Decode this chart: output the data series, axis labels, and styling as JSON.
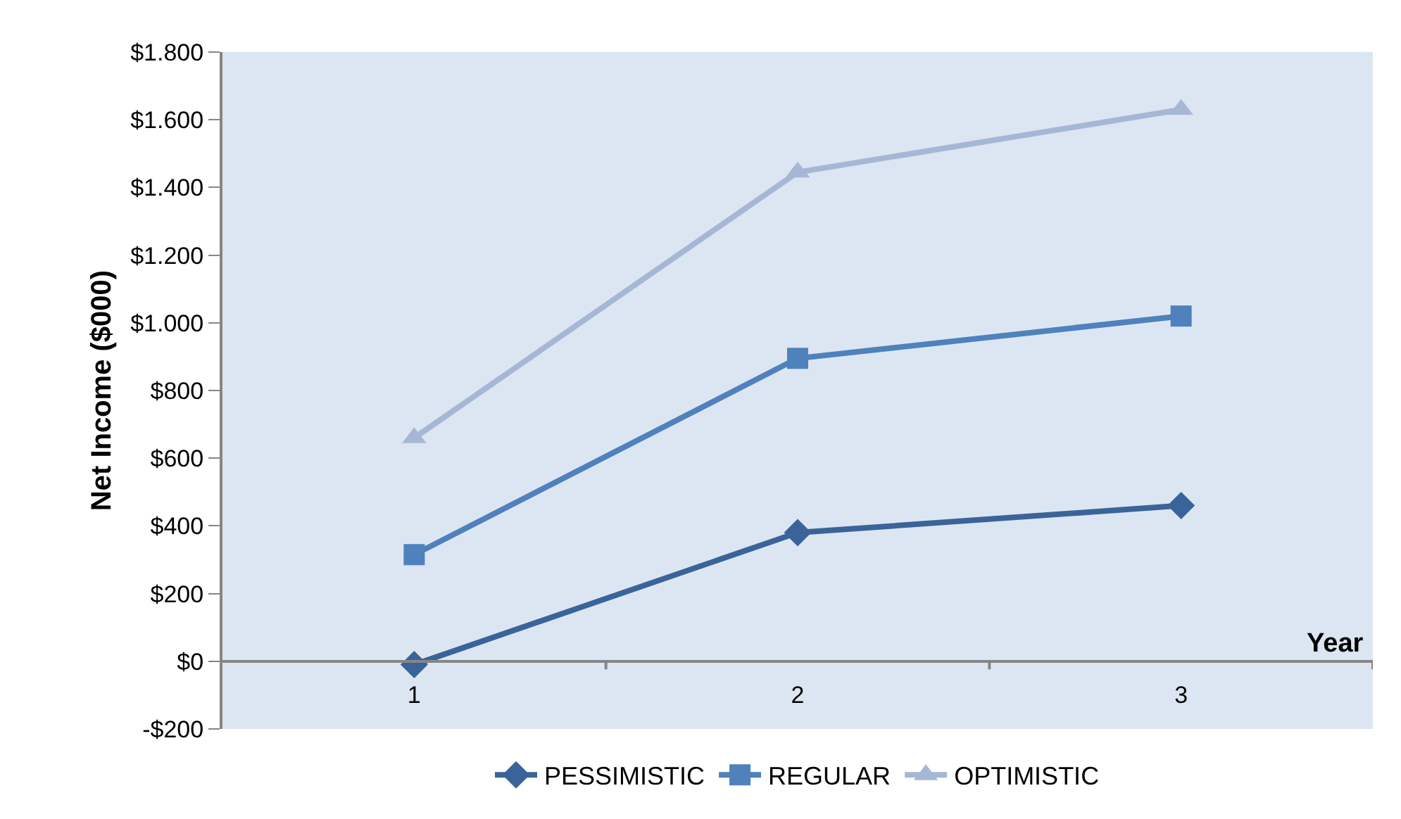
{
  "chart_data": {
    "type": "line",
    "xlabel": "Year",
    "ylabel": "Net Income ($000)",
    "categories": [
      "1",
      "2",
      "3"
    ],
    "series": [
      {
        "name": "PESSIMISTIC",
        "color": "#3a6499",
        "marker": "diamond",
        "values": [
          -10,
          380,
          460
        ]
      },
      {
        "name": "REGULAR",
        "color": "#4f81bd",
        "marker": "square",
        "values": [
          315,
          895,
          1020
        ]
      },
      {
        "name": "OPTIMISTIC",
        "color": "#a6b7d6",
        "marker": "triangle",
        "values": [
          660,
          1445,
          1630
        ]
      }
    ],
    "ylim": [
      -200,
      1800
    ],
    "yticks": [
      {
        "value": -200,
        "label": "-$200"
      },
      {
        "value": 0,
        "label": "$0"
      },
      {
        "value": 200,
        "label": "$200"
      },
      {
        "value": 400,
        "label": "$400"
      },
      {
        "value": 600,
        "label": "$600"
      },
      {
        "value": 800,
        "label": "$800"
      },
      {
        "value": 1000,
        "label": "$1.000"
      },
      {
        "value": 1200,
        "label": "$1.200"
      },
      {
        "value": 1400,
        "label": "$1.400"
      },
      {
        "value": 1600,
        "label": "$1.600"
      },
      {
        "value": 1800,
        "label": "$1.800"
      }
    ],
    "grid": false,
    "legend": "bottom",
    "line_style": "solid"
  }
}
